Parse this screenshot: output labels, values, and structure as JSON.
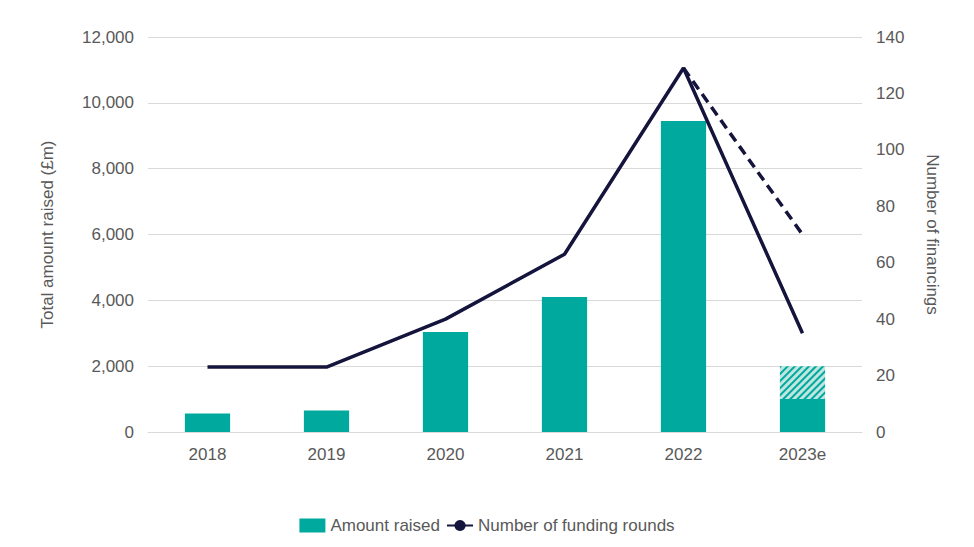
{
  "chart_data": {
    "type": "bar",
    "categories": [
      "2018",
      "2019",
      "2020",
      "2021",
      "2022",
      "2023e"
    ],
    "y_label": "Total amount raised (£m)",
    "y2_label": "Number of financings",
    "ylim": [
      0,
      12000
    ],
    "yticks": [
      0,
      {
        "value": 2000,
        "label": "2,000"
      },
      {
        "value": 4000,
        "label": "4,000"
      },
      {
        "value": 6000,
        "label": "6,000"
      },
      {
        "value": 8000,
        "label": "8,000"
      },
      {
        "value": 10000,
        "label": "10,000"
      },
      {
        "value": 12000,
        "label": "12,000"
      }
    ],
    "y2lim": [
      0,
      140
    ],
    "y2ticks": [
      0,
      20,
      40,
      60,
      80,
      100,
      120,
      140
    ],
    "grid": true,
    "legend": "bottom",
    "stacked": true,
    "series": [
      {
        "name": "Amount raised",
        "type": "bar",
        "color": "#00a99d",
        "values": [
          560,
          650,
          3040,
          4100,
          9450,
          1000
        ]
      },
      {
        "type": "bar",
        "color": "#00a99d",
        "marker": "hatched",
        "values": [
          null,
          null,
          null,
          null,
          null,
          1000
        ]
      },
      {
        "name": "Number of funding rounds",
        "type": "line",
        "axis": "y2",
        "color": "#14143c",
        "line_style": "solid",
        "values": [
          23,
          23,
          40,
          63,
          129,
          35
        ]
      },
      {
        "type": "line",
        "axis": "y2",
        "color": "#14143c",
        "line_style": "dashed",
        "values": [
          null,
          null,
          null,
          null,
          129,
          70
        ]
      }
    ]
  }
}
